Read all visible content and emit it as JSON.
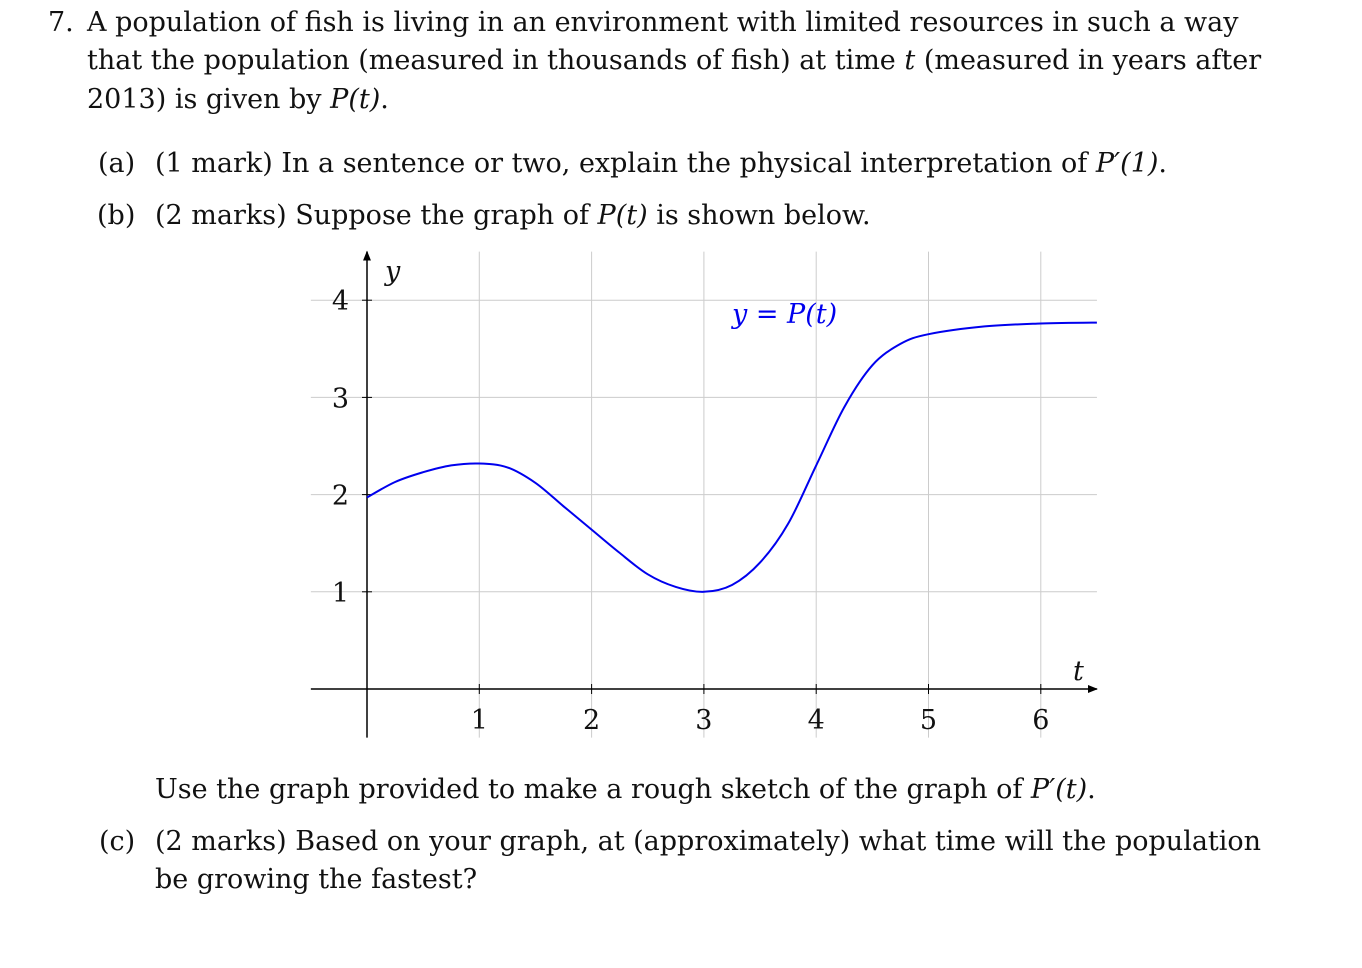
{
  "question": {
    "number": "7.",
    "intro_lines": [
      "A population of fish is living in an environment with limited resources in such a way",
      "that the population (measured in thousands of fish) at time ",
      "t",
      " (measured in years after",
      "2013) is given by ",
      "P(t)",
      "."
    ]
  },
  "parts": {
    "a": {
      "label": "(a)",
      "text": "(1 mark) In a sentence or two, explain the physical interpretation of ",
      "math": "P′(1)",
      "tail": "."
    },
    "b": {
      "label": "(b)",
      "text": "(2 marks) Suppose the graph of ",
      "math": "P(t)",
      "tail": " is shown below."
    },
    "b_followup": {
      "text": "Use the graph provided to make a rough sketch of the graph of ",
      "math": "P′(t)",
      "tail": "."
    },
    "c": {
      "label": "(c)",
      "line1": "(2 marks) Based on your graph, at (approximately) what time will the population",
      "line2": "be growing the fastest?"
    }
  },
  "chart_data": {
    "type": "line",
    "xlabel": "t",
    "ylabel": "y",
    "series": [
      {
        "name": "y = P(t)",
        "color": "#0000ee",
        "x": [
          0,
          0.25,
          0.5,
          0.75,
          1,
          1.25,
          1.5,
          1.75,
          2,
          2.25,
          2.5,
          2.75,
          3,
          3.25,
          3.5,
          3.75,
          4,
          4.25,
          4.5,
          4.75,
          5,
          5.5,
          6,
          6.5
        ],
        "y": [
          1.97,
          2.13,
          2.23,
          2.3,
          2.32,
          2.28,
          2.12,
          1.88,
          1.64,
          1.4,
          1.18,
          1.05,
          1.0,
          1.07,
          1.3,
          1.7,
          2.3,
          2.9,
          3.33,
          3.55,
          3.65,
          3.73,
          3.76,
          3.77
        ]
      }
    ],
    "x_ticks": [
      "1",
      "2",
      "3",
      "4",
      "5",
      "6"
    ],
    "y_ticks": [
      "1",
      "2",
      "3",
      "4"
    ],
    "xlim": [
      -0.5,
      6.5
    ],
    "ylim": [
      -0.5,
      4.5
    ],
    "grid": true,
    "axis_color": "#000000",
    "grid_color": "#cccccc"
  }
}
